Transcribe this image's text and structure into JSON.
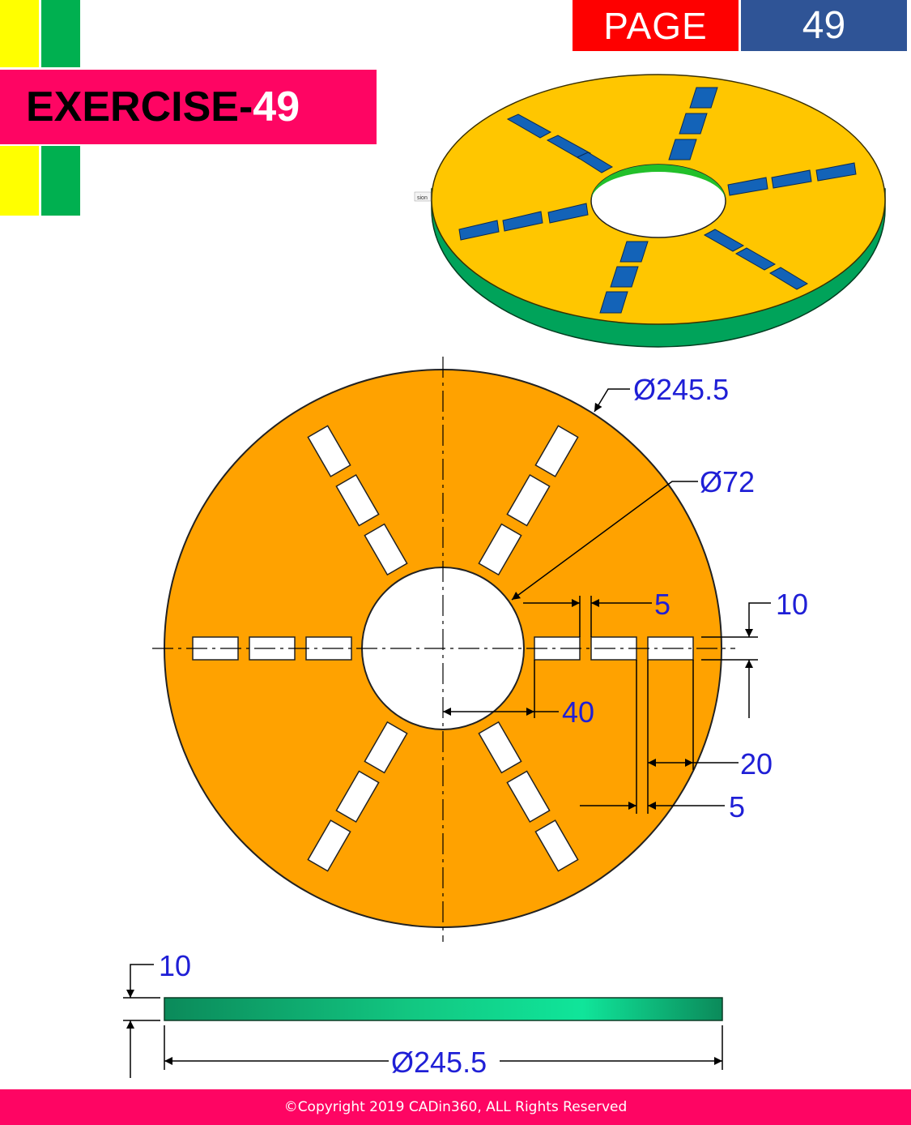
{
  "header": {
    "page_label": "PAGE",
    "page_number": "49",
    "title_prefix": "EXERCISE-",
    "title_number": "49"
  },
  "iso_view": {
    "stamp": "sion"
  },
  "dimensions": {
    "outer_diameter": "Ø245.5",
    "hole_diameter": "Ø72",
    "slot_gap": "5",
    "slot_width": "10",
    "slot_offset": "40",
    "slot_length": "20",
    "slot_spacing": "5",
    "thickness": "10",
    "side_diameter": "Ø245.5"
  },
  "footer": {
    "copyright": "©Copyright 2019 CADin360, ALL Rights Reserved"
  },
  "colors": {
    "plate_top": "#ffa200",
    "iso_top": "#ffc600",
    "iso_side": "#00a35a",
    "slot_fill": "#ffffff",
    "dimension_text": "#1f1fd6",
    "accent_pink": "#fe0563",
    "accent_red": "#fe0000",
    "accent_blue": "#2f5496",
    "bar_yellow": "#ffff00",
    "bar_green": "#00b050"
  }
}
